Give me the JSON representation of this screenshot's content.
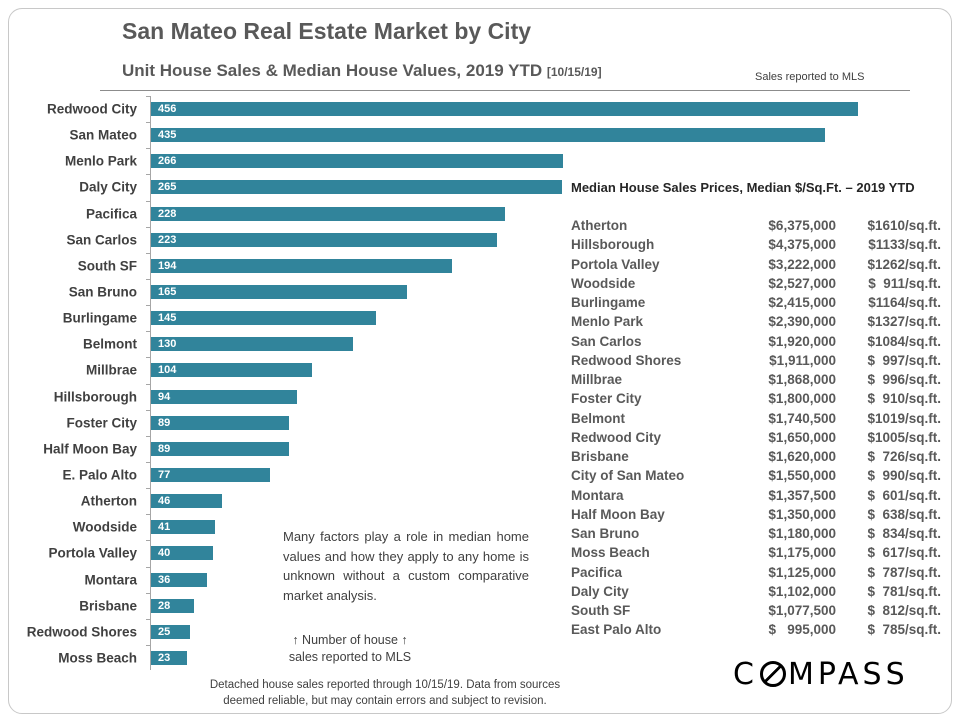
{
  "header": {
    "title": "San Mateo Real Estate Market by City",
    "subtitle": "Unit House Sales & Median House Values, 2019 YTD",
    "subtitle_date": "[10/15/19]",
    "sales_note": "Sales reported to MLS"
  },
  "chart_data": {
    "type": "bar",
    "orientation": "horizontal",
    "bar_color": "#31849b",
    "categories": [
      "Redwood City",
      "San Mateo",
      "Menlo Park",
      "Daly City",
      "Pacifica",
      "San Carlos",
      "South SF",
      "San Bruno",
      "Burlingame",
      "Belmont",
      "Millbrae",
      "Hillsborough",
      "Foster City",
      "Half Moon Bay",
      "E. Palo Alto",
      "Atherton",
      "Woodside",
      "Portola Valley",
      "Montara",
      "Brisbane",
      "Redwood Shores",
      "Moss Beach"
    ],
    "values": [
      456,
      435,
      266,
      265,
      228,
      223,
      194,
      165,
      145,
      130,
      104,
      94,
      89,
      89,
      77,
      46,
      41,
      40,
      36,
      28,
      25,
      23
    ],
    "xlim": [
      0,
      456
    ],
    "data_labels": true,
    "grid": false
  },
  "table": {
    "title": "Median House Sales Prices, Median $/Sq.Ft. – 2019 YTD",
    "rows": [
      {
        "city": "Atherton",
        "price": "$6,375,000",
        "sqft": "$1610/sq.ft."
      },
      {
        "city": "Hillsborough",
        "price": "$4,375,000",
        "sqft": "$1133/sq.ft."
      },
      {
        "city": "Portola Valley",
        "price": "$3,222,000",
        "sqft": "$1262/sq.ft."
      },
      {
        "city": "Woodside",
        "price": "$2,527,000",
        "sqft": "$  911/sq.ft."
      },
      {
        "city": "Burlingame",
        "price": "$2,415,000",
        "sqft": "$1164/sq.ft."
      },
      {
        "city": "Menlo Park",
        "price": "$2,390,000",
        "sqft": "$1327/sq.ft."
      },
      {
        "city": "San Carlos",
        "price": "$1,920,000",
        "sqft": "$1084/sq.ft."
      },
      {
        "city": "Redwood Shores",
        "price": "$1,911,000",
        "sqft": "$  997/sq.ft."
      },
      {
        "city": "Millbrae",
        "price": "$1,868,000",
        "sqft": "$  996/sq.ft."
      },
      {
        "city": "Foster City",
        "price": "$1,800,000",
        "sqft": "$  910/sq.ft."
      },
      {
        "city": "Belmont",
        "price": "$1,740,500",
        "sqft": "$1019/sq.ft."
      },
      {
        "city": "Redwood City",
        "price": "$1,650,000",
        "sqft": "$1005/sq.ft."
      },
      {
        "city": "Brisbane",
        "price": "$1,620,000",
        "sqft": "$  726/sq.ft."
      },
      {
        "city": "City of San Mateo",
        "price": "$1,550,000",
        "sqft": "$  990/sq.ft."
      },
      {
        "city": "Montara",
        "price": "$1,357,500",
        "sqft": "$  601/sq.ft."
      },
      {
        "city": "Half Moon Bay",
        "price": "$1,350,000",
        "sqft": "$  638/sq.ft."
      },
      {
        "city": "San Bruno",
        "price": "$1,180,000",
        "sqft": "$  834/sq.ft."
      },
      {
        "city": "Moss Beach",
        "price": "$1,175,000",
        "sqft": "$  617/sq.ft."
      },
      {
        "city": "Pacifica",
        "price": "$1,125,000",
        "sqft": "$  787/sq.ft."
      },
      {
        "city": "Daly City",
        "price": "$1,102,000",
        "sqft": "$  781/sq.ft."
      },
      {
        "city": "South SF",
        "price": "$1,077,500",
        "sqft": "$  812/sq.ft."
      },
      {
        "city": "East Palo Alto",
        "price": "$   995,000",
        "sqft": "$  785/sq.ft."
      }
    ]
  },
  "notes": {
    "factors": "Many factors play a role in median home values and how they apply to any home is unknown without a custom comparative market analysis.",
    "arrow_line1": "↑ Number of house ↑",
    "arrow_line2": "sales reported to MLS",
    "footnote_line1": "Detached house sales reported through 10/15/19. Data from sources",
    "footnote_line2": "deemed reliable, but may contain errors and subject to revision."
  },
  "logo": "COMPASS"
}
